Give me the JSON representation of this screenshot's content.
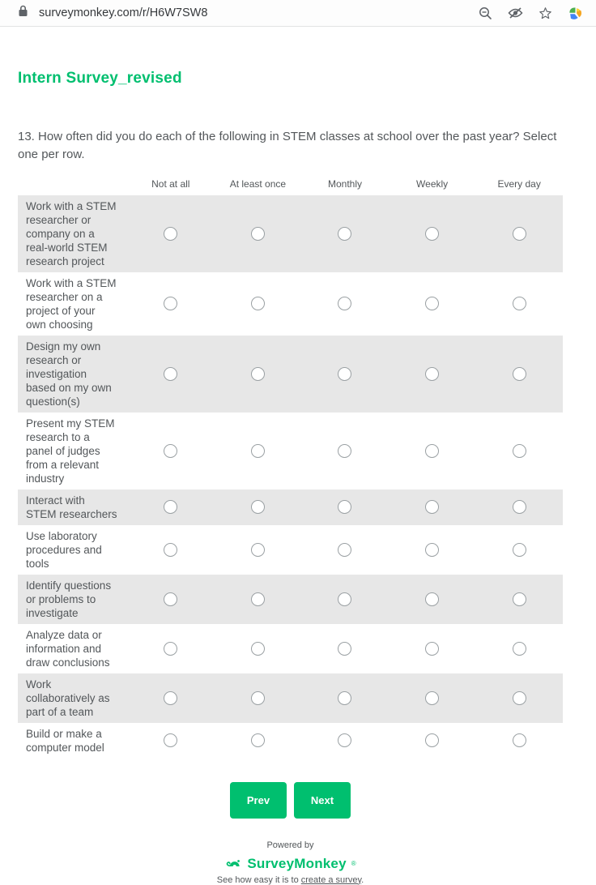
{
  "browser": {
    "url": "surveymonkey.com/r/H6W7SW8",
    "icons": {
      "left": "lock-icon",
      "right": [
        "zoom-out-icon",
        "eye-hidden-icon",
        "bookmark-star-icon",
        "extension-icon"
      ]
    }
  },
  "survey": {
    "title": "Intern Survey_revised",
    "question": "13. How often did you do each of the following in STEM classes at school over the past year? Select one per row.",
    "columns": [
      "Not at all",
      "At least once",
      "Monthly",
      "Weekly",
      "Every day"
    ],
    "rows": [
      {
        "label": "Work with a STEM researcher or company on a real-world STEM research project",
        "selected": null
      },
      {
        "label": "Work with a STEM researcher on a project of your own choosing",
        "selected": null
      },
      {
        "label": "Design my own research or investigation based on my own question(s)",
        "selected": null
      },
      {
        "label": "Present my STEM research to a panel of judges from a relevant industry",
        "selected": null
      },
      {
        "label": "Interact with STEM researchers",
        "selected": null
      },
      {
        "label": "Use laboratory procedures and tools",
        "selected": null
      },
      {
        "label": "Identify questions or problems to investigate",
        "selected": null
      },
      {
        "label": "Analyze data or information and draw conclusions",
        "selected": null
      },
      {
        "label": "Work collaboratively as part of a team",
        "selected": null
      },
      {
        "label": "Build or make a computer model",
        "selected": null
      }
    ],
    "buttons": {
      "prev": "Prev",
      "next": "Next"
    }
  },
  "footer": {
    "powered_by": "Powered by",
    "brand": "SurveyMonkey",
    "brand_mark": "®",
    "tagline_prefix": "See how easy it is to ",
    "tagline_link": "create a survey",
    "tagline_suffix": "."
  },
  "colors": {
    "brand_green": "#00BF6F",
    "row_alt_gray": "#e7e7e7",
    "text_gray": "#53575a"
  }
}
